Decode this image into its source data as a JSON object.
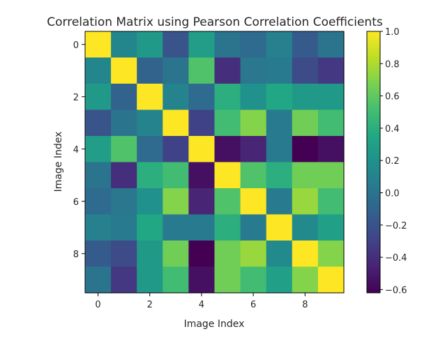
{
  "chart_data": {
    "type": "heatmap",
    "title": "Correlation Matrix using Pearson Correlation Coefficients",
    "xlabel": "Image Index",
    "ylabel": "Image Index",
    "x_ticks": [
      "0",
      "2",
      "4",
      "6",
      "8"
    ],
    "y_ticks": [
      "0",
      "2",
      "4",
      "6",
      "8"
    ],
    "colormap": "viridis",
    "vmin": -0.62,
    "vmax": 1.0,
    "colorbar_ticks": [
      "1.0",
      "0.8",
      "0.6",
      "0.4",
      "0.2",
      "0.0",
      "−0.2",
      "−0.4",
      "−0.6"
    ],
    "colorbar_tick_values": [
      1.0,
      0.8,
      0.6,
      0.4,
      0.2,
      0.0,
      -0.2,
      -0.4,
      -0.6
    ],
    "matrix": [
      [
        1.0,
        0.12,
        0.25,
        -0.2,
        0.28,
        0.0,
        -0.05,
        0.08,
        -0.15,
        0.0
      ],
      [
        0.12,
        1.0,
        -0.1,
        0.0,
        0.55,
        -0.4,
        0.02,
        0.05,
        -0.25,
        -0.35
      ],
      [
        0.25,
        -0.1,
        1.0,
        0.1,
        -0.05,
        0.4,
        0.2,
        0.35,
        0.25,
        0.25
      ],
      [
        -0.2,
        0.0,
        0.1,
        1.0,
        -0.3,
        0.5,
        0.7,
        0.05,
        0.65,
        0.5
      ],
      [
        0.28,
        0.55,
        -0.05,
        -0.3,
        1.0,
        -0.55,
        -0.45,
        0.05,
        -0.62,
        -0.55
      ],
      [
        0.0,
        -0.4,
        0.4,
        0.5,
        -0.55,
        1.0,
        0.55,
        0.4,
        0.65,
        0.65
      ],
      [
        -0.05,
        0.02,
        0.2,
        0.7,
        -0.45,
        0.55,
        1.0,
        0.05,
        0.75,
        0.5
      ],
      [
        0.08,
        0.05,
        0.35,
        0.05,
        0.05,
        0.4,
        0.05,
        1.0,
        0.15,
        0.3
      ],
      [
        -0.15,
        -0.25,
        0.25,
        0.65,
        -0.62,
        0.65,
        0.75,
        0.15,
        1.0,
        0.7
      ],
      [
        0.0,
        -0.35,
        0.25,
        0.5,
        -0.55,
        0.65,
        0.5,
        0.3,
        0.7,
        1.0
      ]
    ]
  }
}
